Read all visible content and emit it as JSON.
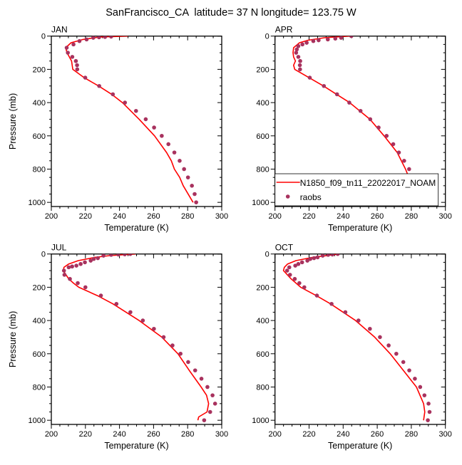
{
  "chart_data": {
    "type": "line",
    "title": "SanFrancisco_CA  latitude= 37 N longitude= 123.75 W",
    "xlabel": "Temperature (K)",
    "ylabel": "Pressure (mb)",
    "xlim": [
      200,
      300
    ],
    "ylim": [
      1025,
      0
    ],
    "y_inverted": true,
    "xticks": [
      "200",
      "220",
      "240",
      "260",
      "280",
      "300"
    ],
    "yticks": [
      "0",
      "200",
      "400",
      "600",
      "800",
      "1000"
    ],
    "colors": {
      "model": "#ff0000",
      "raobs": "#a8325e"
    },
    "legend": {
      "placement": "bottom-right of APR panel",
      "entries": [
        "N1850_f09_tn11_22022017_NOAM",
        "raobs"
      ]
    },
    "panels": [
      {
        "name": "JAN",
        "model": {
          "p": [
            0,
            5,
            20,
            40,
            70,
            100,
            150,
            200,
            250,
            300,
            350,
            400,
            500,
            600,
            700,
            750,
            800,
            850,
            900,
            1000
          ],
          "t": [
            245,
            228.4,
            218.6,
            211.6,
            208.4,
            209.2,
            211.9,
            212.6,
            219.3,
            227.7,
            235.4,
            241.7,
            251.5,
            260.6,
            267.6,
            270.4,
            272.2,
            275.3,
            277.4,
            283.2
          ]
        },
        "raobs": {
          "p": [
            1000,
            950,
            900,
            850,
            800,
            750,
            700,
            650,
            600,
            550,
            500,
            450,
            400,
            350,
            300,
            250,
            200,
            175,
            150,
            125,
            100,
            70,
            50,
            30,
            20,
            10,
            7,
            5,
            3
          ],
          "t": [
            285.0,
            284.1,
            282.5,
            280.2,
            277.9,
            275.3,
            272.2,
            268.7,
            264.8,
            260.3,
            255.4,
            249.7,
            243.2,
            236.1,
            228.1,
            219.9,
            215.2,
            215.1,
            214.4,
            212.3,
            209.7,
            209.0,
            213.0,
            216.5,
            220.7,
            224.6,
            228.0,
            231.5,
            235.1
          ]
        }
      },
      {
        "name": "APR",
        "model": {
          "p": [
            0,
            10,
            25,
            40,
            70,
            100,
            125,
            150,
            175,
            200,
            250,
            300,
            350,
            400,
            500,
            600,
            700,
            800,
            900,
            1000
          ],
          "t": [
            243.8,
            229,
            219.4,
            214.4,
            210.9,
            210.6,
            210.9,
            212,
            210.9,
            211.6,
            220,
            228.4,
            236.1,
            243.8,
            255.7,
            264,
            271.7,
            276.6,
            280.5,
            283.9
          ]
        },
        "raobs": {
          "p": [
            1000,
            950,
            900,
            850,
            800,
            750,
            700,
            650,
            600,
            550,
            500,
            450,
            400,
            350,
            300,
            250,
            200,
            175,
            150,
            125,
            100,
            80,
            60,
            50,
            40,
            30,
            25,
            20,
            15,
            10,
            0
          ],
          "t": [
            285.7,
            284.7,
            283.3,
            281.2,
            278.7,
            275.8,
            272.7,
            269.4,
            265.5,
            260.8,
            255.9,
            250.2,
            243.6,
            236.4,
            228.7,
            220.4,
            214.7,
            214.6,
            214.8,
            213.7,
            212.4,
            212.8,
            213.7,
            216.1,
            218.6,
            222.5,
            225.6,
            231,
            235.4,
            238.8,
            244.8
          ]
        }
      },
      {
        "name": "JUL",
        "model": {
          "p": [
            0,
            10,
            20,
            40,
            60,
            80,
            100,
            150,
            175,
            200,
            250,
            300,
            400,
            500,
            600,
            700,
            800,
            850,
            900,
            950,
            980,
            1000
          ],
          "t": [
            249.4,
            234,
            225.6,
            215.8,
            210.2,
            207.4,
            207,
            210.2,
            213,
            216.1,
            227,
            236.1,
            251.5,
            264.8,
            274.3,
            280.9,
            287.9,
            291.1,
            292.3,
            291.4,
            286.5,
            286
          ]
        },
        "raobs": {
          "p": [
            1000,
            950,
            900,
            850,
            800,
            750,
            700,
            650,
            600,
            550,
            500,
            450,
            400,
            350,
            300,
            250,
            200,
            175,
            150,
            125,
            100,
            80,
            75,
            70,
            60,
            50,
            40,
            30,
            25,
            10,
            5,
            3,
            2,
            0
          ],
          "t": [
            289.7,
            293.2,
            296.1,
            294.6,
            291.6,
            288.1,
            284.4,
            280.3,
            275.8,
            271.1,
            265.9,
            260.2,
            253.7,
            246.4,
            238.2,
            229.1,
            220,
            215.5,
            210.9,
            207.7,
            207.4,
            210.2,
            212.2,
            214.7,
            217.2,
            219.7,
            223.1,
            224.9,
            227.3,
            230.6,
            235.1,
            239.3,
            243.1,
            246.3
          ]
        }
      },
      {
        "name": "OCT",
        "model": {
          "p": [
            0,
            20,
            40,
            60,
            80,
            100,
            150,
            200,
            250,
            300,
            400,
            500,
            600,
            700,
            800,
            900,
            950,
            1000
          ],
          "t": [
            237.5,
            222.1,
            212.3,
            207.4,
            205.5,
            205,
            209.5,
            215.1,
            224.2,
            232.6,
            247.3,
            258.5,
            267.6,
            275.3,
            283,
            287.2,
            287.9,
            287.2
          ]
        },
        "raobs": {
          "p": [
            1000,
            950,
            900,
            850,
            800,
            750,
            700,
            650,
            600,
            550,
            500,
            450,
            400,
            350,
            300,
            250,
            200,
            175,
            150,
            125,
            100,
            80,
            70,
            60,
            50,
            40,
            30,
            25,
            20,
            10,
            5,
            3,
            0
          ],
          "t": [
            289.7,
            290.7,
            290.1,
            287.7,
            285.2,
            282.1,
            278.8,
            275.3,
            271.2,
            266.7,
            261.6,
            255.7,
            249,
            241.3,
            233.2,
            224.6,
            217.2,
            214.3,
            211.6,
            208.8,
            207.1,
            208.4,
            211.9,
            213.7,
            215.9,
            219,
            220.7,
            222.9,
            225,
            228,
            231.2,
            233.7,
            236.8
          ]
        }
      }
    ]
  }
}
